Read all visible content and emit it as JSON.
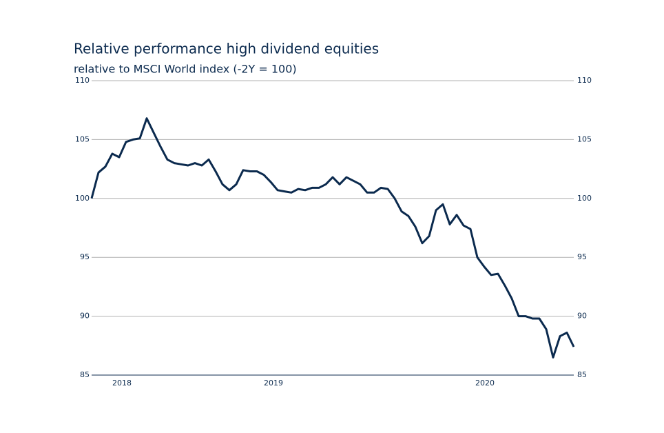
{
  "chart_data": {
    "type": "line",
    "title": "Relative performance high dividend equities",
    "subtitle": "relative to MSCI World index (-2Y = 100)",
    "series": [
      {
        "color": "#0b2a4e",
        "values": [
          100,
          102.2,
          102.7,
          103.8,
          103.5,
          104.8,
          105,
          105.1,
          106.8,
          105.6,
          104.4,
          103.3,
          103,
          102.9,
          102.8,
          103,
          102.8,
          103.3,
          102.3,
          101.2,
          100.7,
          101.2,
          102.4,
          102.3,
          102.3,
          102,
          101.4,
          100.7,
          100.6,
          100.5,
          100.8,
          100.7,
          100.9,
          100.9,
          101.2,
          101.8,
          101.2,
          101.8,
          101.5,
          101.2,
          100.5,
          100.5,
          100.9,
          100.8,
          100,
          98.9,
          98.5,
          97.6,
          96.2,
          96.8,
          99,
          99.5,
          97.8,
          98.6,
          97.7,
          97.4,
          95,
          94.2,
          93.5,
          93.6,
          92.6,
          91.5,
          90,
          90,
          89.8,
          89.8,
          88.9,
          86.5,
          88.3,
          88.6,
          87.4
        ]
      }
    ],
    "xlim": [
      0,
      70
    ],
    "xticks": [
      {
        "value": 4.4,
        "label": "2018"
      },
      {
        "value": 26.4,
        "label": "2019"
      },
      {
        "value": 57.1,
        "label": "2020"
      }
    ],
    "ylim": [
      85,
      110
    ],
    "yticks": [
      85,
      90,
      95,
      100,
      105,
      110
    ],
    "grid": true
  }
}
